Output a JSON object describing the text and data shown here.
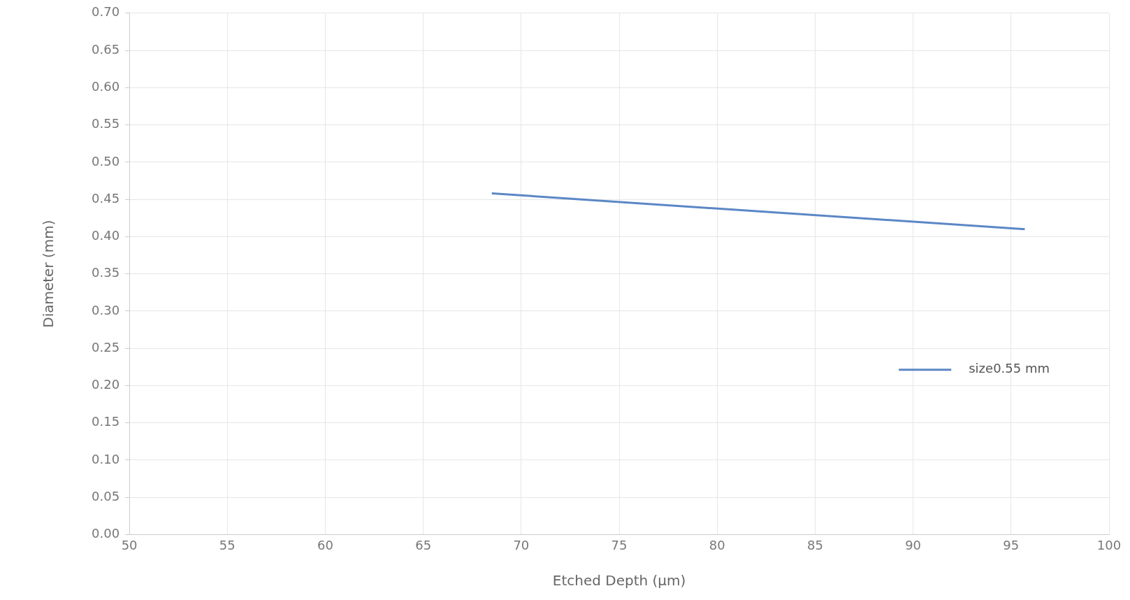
{
  "chart_data": {
    "type": "line",
    "xlabel": "Etched Depth (μm)",
    "ylabel": "Diameter (mm)",
    "series": [
      {
        "name": "size0.55 mm",
        "color": "#5b87c5",
        "x": [
          68.5,
          95.7
        ],
        "values": [
          0.458,
          0.41
        ]
      }
    ],
    "xlim": [
      50,
      100
    ],
    "xticks": [
      50,
      55,
      60,
      65,
      70,
      75,
      80,
      85,
      90,
      95,
      100
    ],
    "ylim": [
      0,
      0.7
    ],
    "yticks": [
      {
        "value": 0,
        "label": "0.00"
      },
      {
        "value": 0.05,
        "label": "0.05"
      },
      {
        "value": 0.1,
        "label": "0.10"
      },
      {
        "value": 0.15,
        "label": "0.15"
      },
      {
        "value": 0.2,
        "label": "0.20"
      },
      {
        "value": 0.25,
        "label": "0.25"
      },
      {
        "value": 0.3,
        "label": "0.30"
      },
      {
        "value": 0.35,
        "label": "0.35"
      },
      {
        "value": 0.4,
        "label": "0.40"
      },
      {
        "value": 0.45,
        "label": "0.45"
      },
      {
        "value": 0.5,
        "label": "0.50"
      },
      {
        "value": 0.55,
        "label": "0.55"
      },
      {
        "value": 0.6,
        "label": "0.60"
      },
      {
        "value": 0.65,
        "label": "0.65"
      },
      {
        "value": 0.7,
        "label": "0.70"
      }
    ],
    "grid": true,
    "legend": "right",
    "marker": "none",
    "line_style": "solid"
  }
}
